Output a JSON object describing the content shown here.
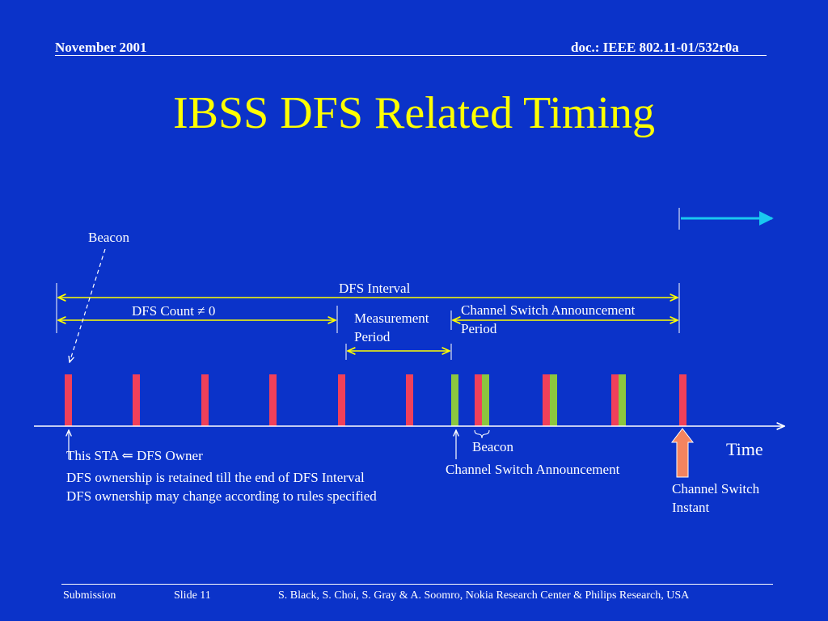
{
  "header": {
    "date": "November 2001",
    "doc": "doc.: IEEE 802.11-01/532r0a"
  },
  "title": "IBSS DFS Related Timing",
  "diagram": {
    "beacon_top": "Beacon",
    "dfs_interval": "DFS Interval",
    "dfs_count": "DFS Count ≠ 0",
    "measurement_period": [
      "Measurement",
      "Period"
    ],
    "csa_period": [
      "Channel Switch Announcement",
      "Period"
    ],
    "beacon_bottom": "Beacon",
    "csa": "Channel Switch Announcement",
    "time": "Time",
    "channel_switch_instant": [
      "Channel Switch",
      "Instant"
    ],
    "sta_owner": "This STA ⇐ DFS Owner",
    "ownership_retained": "DFS ownership is retained till the end of DFS Interval",
    "ownership_change": "DFS ownership may change according to rules specified",
    "colors": {
      "background": "#0b33c9",
      "beacon_bar": "#f0405a",
      "csa_bar": "#8cc63f",
      "interval_arrow": "#ffff00",
      "time_axis": "#ffffff",
      "switch_arrow": "#f4845f",
      "cyan_arrow": "#19c8f0"
    }
  },
  "footer": {
    "submission": "Submission",
    "slide": "Slide 11",
    "authors": "S. Black, S. Choi, S. Gray & A. Soomro, Nokia Research Center & Philips Research, USA"
  }
}
